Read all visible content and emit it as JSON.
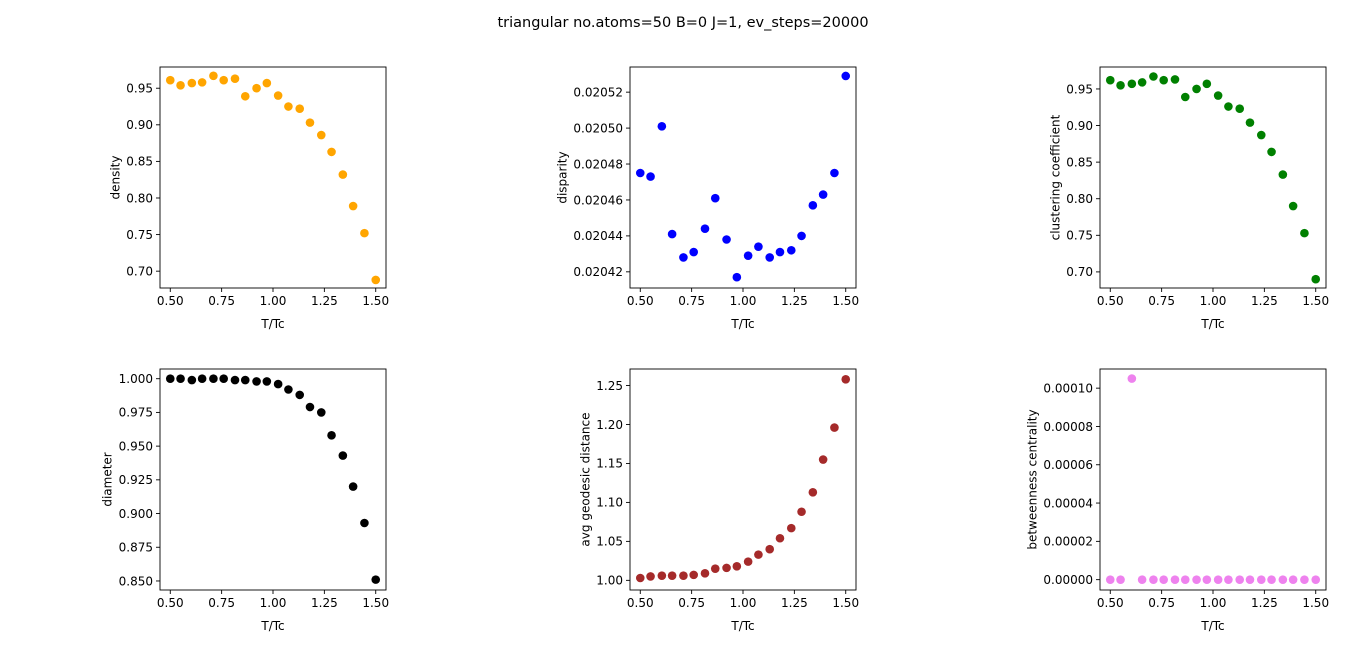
{
  "suptitle": "triangular no.atoms=50  B=0 J=1, ev_steps=20000",
  "chart_data": [
    {
      "type": "scatter",
      "xlabel": "T/Tc",
      "ylabel": "density",
      "color": "#ffa500",
      "xlim": [
        0.45,
        1.55
      ],
      "ylim": [
        0.677,
        0.979
      ],
      "xticks": [
        0.5,
        0.75,
        1.0,
        1.25,
        1.5
      ],
      "xtick_labels": [
        "0.50",
        "0.75",
        "1.00",
        "1.25",
        "1.50"
      ],
      "yticks": [
        0.7,
        0.75,
        0.8,
        0.85,
        0.9,
        0.95
      ],
      "ytick_labels": [
        "0.70",
        "0.75",
        "0.80",
        "0.85",
        "0.90",
        "0.95"
      ],
      "x": [
        0.5,
        0.55,
        0.605,
        0.655,
        0.71,
        0.76,
        0.815,
        0.865,
        0.92,
        0.97,
        1.025,
        1.075,
        1.13,
        1.18,
        1.235,
        1.285,
        1.34,
        1.39,
        1.445,
        1.5
      ],
      "y": [
        0.961,
        0.954,
        0.957,
        0.958,
        0.967,
        0.961,
        0.963,
        0.939,
        0.95,
        0.957,
        0.94,
        0.925,
        0.922,
        0.903,
        0.886,
        0.863,
        0.832,
        0.789,
        0.752,
        0.688
      ]
    },
    {
      "type": "scatter",
      "xlabel": "T/Tc",
      "ylabel": "disparity",
      "color": "#0000ff",
      "xlim": [
        0.45,
        1.55
      ],
      "ylim": [
        0.020411,
        0.020534
      ],
      "xticks": [
        0.5,
        0.75,
        1.0,
        1.25,
        1.5
      ],
      "xtick_labels": [
        "0.50",
        "0.75",
        "1.00",
        "1.25",
        "1.50"
      ],
      "yticks": [
        0.02042,
        0.02044,
        0.02046,
        0.02048,
        0.0205,
        0.02052
      ],
      "ytick_labels": [
        "0.02042",
        "0.02044",
        "0.02046",
        "0.02048",
        "0.02050",
        "0.02052"
      ],
      "x": [
        0.5,
        0.55,
        0.605,
        0.655,
        0.71,
        0.76,
        0.815,
        0.865,
        0.92,
        0.97,
        1.025,
        1.075,
        1.13,
        1.18,
        1.235,
        1.285,
        1.34,
        1.39,
        1.445,
        1.5
      ],
      "y": [
        0.020475,
        0.020473,
        0.020501,
        0.020441,
        0.020428,
        0.020431,
        0.020444,
        0.020461,
        0.020438,
        0.020417,
        0.020429,
        0.020434,
        0.020428,
        0.020431,
        0.020432,
        0.02044,
        0.020457,
        0.020463,
        0.020475,
        0.020529
      ]
    },
    {
      "type": "scatter",
      "xlabel": "T/Tc",
      "ylabel": "clustering coefficient",
      "color": "#008000",
      "xlim": [
        0.45,
        1.55
      ],
      "ylim": [
        0.678,
        0.98
      ],
      "xticks": [
        0.5,
        0.75,
        1.0,
        1.25,
        1.5
      ],
      "xtick_labels": [
        "0.50",
        "0.75",
        "1.00",
        "1.25",
        "1.50"
      ],
      "yticks": [
        0.7,
        0.75,
        0.8,
        0.85,
        0.9,
        0.95
      ],
      "ytick_labels": [
        "0.70",
        "0.75",
        "0.80",
        "0.85",
        "0.90",
        "0.95"
      ],
      "x": [
        0.5,
        0.55,
        0.605,
        0.655,
        0.71,
        0.76,
        0.815,
        0.865,
        0.92,
        0.97,
        1.025,
        1.075,
        1.13,
        1.18,
        1.235,
        1.285,
        1.34,
        1.39,
        1.445,
        1.5
      ],
      "y": [
        0.962,
        0.955,
        0.957,
        0.959,
        0.967,
        0.962,
        0.963,
        0.939,
        0.95,
        0.957,
        0.941,
        0.926,
        0.923,
        0.904,
        0.887,
        0.864,
        0.833,
        0.79,
        0.753,
        0.69
      ]
    },
    {
      "type": "scatter",
      "xlabel": "T/Tc",
      "ylabel": "diameter",
      "color": "#000000",
      "xlim": [
        0.45,
        1.55
      ],
      "ylim": [
        0.8433,
        1.0072
      ],
      "xticks": [
        0.5,
        0.75,
        1.0,
        1.25,
        1.5
      ],
      "xtick_labels": [
        "0.50",
        "0.75",
        "1.00",
        "1.25",
        "1.50"
      ],
      "yticks": [
        0.85,
        0.875,
        0.9,
        0.925,
        0.95,
        0.975,
        1.0
      ],
      "ytick_labels": [
        "0.850",
        "0.875",
        "0.900",
        "0.925",
        "0.950",
        "0.975",
        "1.000"
      ],
      "x": [
        0.5,
        0.55,
        0.605,
        0.655,
        0.71,
        0.76,
        0.815,
        0.865,
        0.92,
        0.97,
        1.025,
        1.075,
        1.13,
        1.18,
        1.235,
        1.285,
        1.34,
        1.39,
        1.445,
        1.5
      ],
      "y": [
        1.0,
        1.0,
        0.999,
        1.0,
        1.0,
        1.0,
        0.999,
        0.999,
        0.998,
        0.998,
        0.996,
        0.992,
        0.988,
        0.979,
        0.975,
        0.958,
        0.943,
        0.92,
        0.893,
        0.851
      ]
    },
    {
      "type": "scatter",
      "xlabel": "T/Tc",
      "ylabel": "avg geodesic distance",
      "color": "#a52a2a",
      "xlim": [
        0.45,
        1.55
      ],
      "ylim": [
        0.9876,
        1.2712
      ],
      "xticks": [
        0.5,
        0.75,
        1.0,
        1.25,
        1.5
      ],
      "xtick_labels": [
        "0.50",
        "0.75",
        "1.00",
        "1.25",
        "1.50"
      ],
      "yticks": [
        1.0,
        1.05,
        1.1,
        1.15,
        1.2,
        1.25
      ],
      "ytick_labels": [
        "1.00",
        "1.05",
        "1.10",
        "1.15",
        "1.20",
        "1.25"
      ],
      "x": [
        0.5,
        0.55,
        0.605,
        0.655,
        0.71,
        0.76,
        0.815,
        0.865,
        0.92,
        0.97,
        1.025,
        1.075,
        1.13,
        1.18,
        1.235,
        1.285,
        1.34,
        1.39,
        1.445,
        1.5
      ],
      "y": [
        1.003,
        1.005,
        1.006,
        1.006,
        1.006,
        1.007,
        1.009,
        1.015,
        1.016,
        1.018,
        1.024,
        1.033,
        1.04,
        1.054,
        1.067,
        1.088,
        1.113,
        1.155,
        1.196,
        1.258
      ]
    },
    {
      "type": "scatter",
      "xlabel": "T/Tc",
      "ylabel": "betweenness centrality",
      "color": "#ee82ee",
      "xlim": [
        0.45,
        1.55
      ],
      "ylim": [
        -5.4e-06,
        0.00011
      ],
      "xticks": [
        0.5,
        0.75,
        1.0,
        1.25,
        1.5
      ],
      "xtick_labels": [
        "0.50",
        "0.75",
        "1.00",
        "1.25",
        "1.50"
      ],
      "yticks": [
        0,
        2e-05,
        4e-05,
        6e-05,
        8e-05,
        0.0001
      ],
      "ytick_labels": [
        "0.00000",
        "0.00002",
        "0.00004",
        "0.00006",
        "0.00008",
        "0.00010"
      ],
      "x": [
        0.5,
        0.55,
        0.605,
        0.655,
        0.71,
        0.76,
        0.815,
        0.865,
        0.92,
        0.97,
        1.025,
        1.075,
        1.13,
        1.18,
        1.235,
        1.285,
        1.34,
        1.39,
        1.445,
        1.5
      ],
      "y": [
        0,
        0,
        0.000105,
        0,
        0,
        0,
        0,
        0,
        0,
        0,
        0,
        0,
        0,
        0,
        0,
        0,
        0,
        0,
        0,
        0
      ]
    }
  ]
}
